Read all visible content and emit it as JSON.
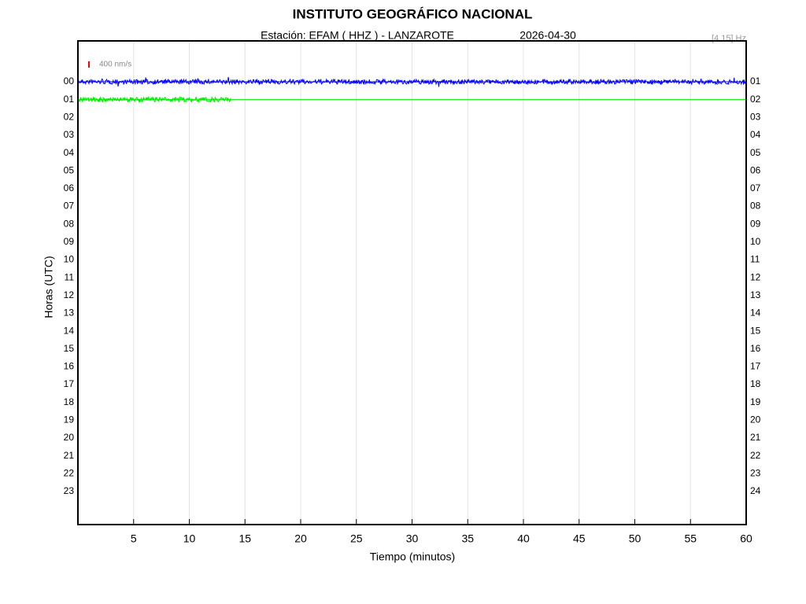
{
  "chart_data": {
    "type": "helicorder",
    "title": "INSTITUTO GEOGRÁFICO NACIONAL",
    "subtitle": "Estación:  EFAM ( HHZ ) - LANZAROTE",
    "date": "2026-04-30",
    "filter": "[4 15] Hz",
    "scale_label": "400 nm/s",
    "scale_color": "#ff0000",
    "y_label": "Horas (UTC)",
    "x_label": "Tiempo (minutos)",
    "xlim": [
      0,
      60
    ],
    "xticks": [
      5,
      10,
      15,
      20,
      25,
      30,
      35,
      40,
      45,
      50,
      55,
      60
    ],
    "grid": true,
    "rows_left": [
      "00",
      "01",
      "02",
      "03",
      "04",
      "05",
      "06",
      "07",
      "08",
      "09",
      "10",
      "11",
      "12",
      "13",
      "14",
      "15",
      "16",
      "17",
      "18",
      "19",
      "20",
      "21",
      "22",
      "23"
    ],
    "rows_right": [
      "01",
      "02",
      "03",
      "04",
      "05",
      "06",
      "07",
      "08",
      "09",
      "10",
      "11",
      "12",
      "13",
      "14",
      "15",
      "16",
      "17",
      "18",
      "19",
      "20",
      "21",
      "22",
      "23",
      "24"
    ],
    "traces": [
      {
        "color": "#0000ff",
        "end": 60
      },
      {
        "color": "#00ee00",
        "end": 13.8
      }
    ]
  }
}
